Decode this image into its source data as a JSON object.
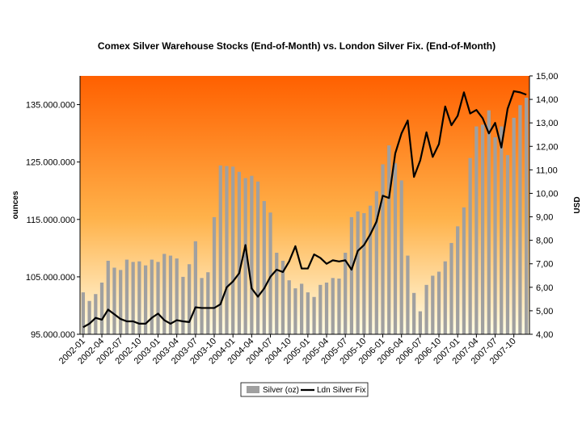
{
  "chart_data": {
    "type": "bar",
    "title": "Comex Silver Warehouse Stocks (End-of-Month) vs. London Silver Fix. (End-of-Month)",
    "ylabel": "ounces",
    "y2label": "USD",
    "ylim": [
      95000000,
      140000000
    ],
    "y2lim": [
      4.0,
      15.0
    ],
    "yticks": [
      "95.000.000",
      "105.000.000",
      "115.000.000",
      "125.000.000",
      "135.000.000"
    ],
    "y2ticks": [
      "4,00",
      "5,00",
      "6,00",
      "7,00",
      "8,00",
      "9,00",
      "10,00",
      "11,00",
      "12,00",
      "13,00",
      "14,00",
      "15,00"
    ],
    "x": [
      "2002-01",
      "2002-02",
      "2002-03",
      "2002-04",
      "2002-05",
      "2002-06",
      "2002-07",
      "2002-08",
      "2002-09",
      "2002-10",
      "2002-11",
      "2002-12",
      "2003-01",
      "2003-02",
      "2003-03",
      "2003-04",
      "2003-05",
      "2003-06",
      "2003-07",
      "2003-08",
      "2003-09",
      "2003-10",
      "2003-11",
      "2003-12",
      "2004-01",
      "2004-02",
      "2004-03",
      "2004-04",
      "2004-05",
      "2004-06",
      "2004-07",
      "2004-08",
      "2004-09",
      "2004-10",
      "2004-11",
      "2004-12",
      "2005-01",
      "2005-02",
      "2005-03",
      "2005-04",
      "2005-05",
      "2005-06",
      "2005-07",
      "2005-08",
      "2005-09",
      "2005-10",
      "2005-11",
      "2005-12",
      "2006-01",
      "2006-02",
      "2006-03",
      "2006-04",
      "2006-05",
      "2006-06",
      "2006-07",
      "2006-08",
      "2006-09",
      "2006-10",
      "2006-11",
      "2006-12",
      "2007-01",
      "2007-02",
      "2007-03",
      "2007-04",
      "2007-05",
      "2007-06",
      "2007-07",
      "2007-08",
      "2007-09",
      "2007-10",
      "2007-11",
      "2007-12"
    ],
    "xtick_labels": [
      "2002-01",
      "2002-04",
      "2002-07",
      "2002-10",
      "2003-01",
      "2003-04",
      "2003-07",
      "2003-10",
      "2004-01",
      "2004-04",
      "2004-07",
      "2004-10",
      "2005-01",
      "2005-04",
      "2005-07",
      "2005-10",
      "2006-01",
      "2006-04",
      "2006-07",
      "2006-10",
      "2007-01",
      "2007-04",
      "2007-07",
      "2007-10"
    ],
    "series": [
      {
        "name": "Silver (oz)",
        "type": "bar",
        "axis": "left",
        "color": "#a0a0a0",
        "values": [
          102300000,
          100800000,
          102000000,
          104000000,
          107800000,
          106600000,
          106200000,
          108000000,
          107600000,
          107700000,
          107000000,
          108000000,
          107600000,
          109000000,
          108700000,
          108200000,
          105000000,
          107200000,
          111200000,
          104800000,
          105800000,
          115400000,
          124400000,
          124300000,
          124200000,
          123300000,
          122200000,
          122600000,
          121600000,
          118200000,
          116200000,
          109200000,
          107800000,
          104400000,
          103000000,
          103800000,
          102300000,
          101500000,
          103600000,
          104000000,
          104800000,
          104700000,
          109200000,
          115400000,
          116400000,
          116100000,
          117400000,
          119900000,
          124600000,
          127900000,
          124800000,
          121800000,
          108700000,
          102200000,
          99000000,
          103600000,
          105200000,
          105900000,
          107700000,
          110900000,
          113800000,
          117100000,
          125700000,
          131200000,
          131500000,
          134000000,
          129300000,
          131200000,
          126200000,
          132700000,
          134900000,
          136200000
        ]
      },
      {
        "name": "Ldn Silver Fix",
        "type": "line",
        "axis": "right",
        "color": "#000000",
        "values": [
          4.3,
          4.45,
          4.7,
          4.62,
          5.05,
          4.85,
          4.65,
          4.55,
          4.55,
          4.45,
          4.45,
          4.7,
          4.88,
          4.6,
          4.45,
          4.6,
          4.55,
          4.52,
          5.15,
          5.12,
          5.12,
          5.12,
          5.28,
          6.0,
          6.25,
          6.6,
          7.8,
          5.95,
          5.6,
          5.95,
          6.45,
          6.75,
          6.65,
          7.1,
          7.75,
          6.8,
          6.8,
          7.4,
          7.25,
          7.0,
          7.15,
          7.1,
          7.15,
          6.75,
          7.55,
          7.8,
          8.25,
          8.8,
          9.9,
          9.8,
          11.7,
          12.55,
          13.1,
          10.7,
          11.4,
          12.6,
          11.55,
          12.1,
          13.7,
          12.9,
          13.3,
          14.3,
          13.4,
          13.55,
          13.2,
          12.55,
          13.0,
          11.95,
          13.6,
          14.35,
          14.3,
          14.2
        ]
      }
    ],
    "legend_position": "bottom",
    "background": {
      "gradient_top": "#ff6000",
      "gradient_bottom": "#fffde6"
    }
  }
}
